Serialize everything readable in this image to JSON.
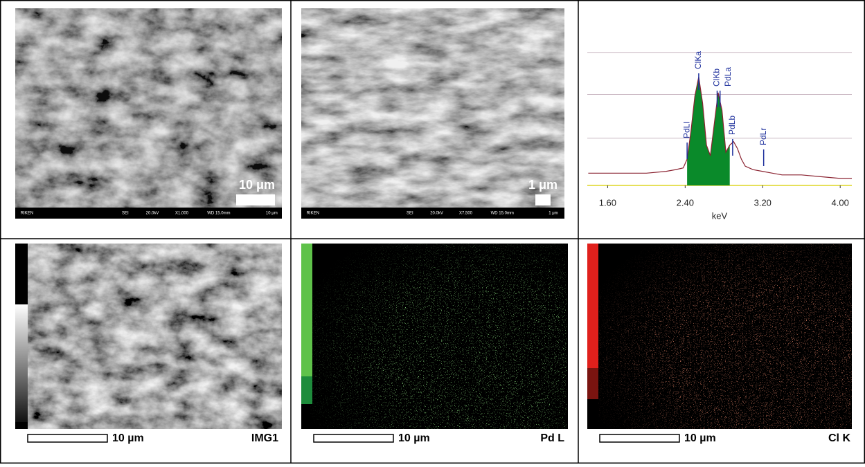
{
  "sem": [
    {
      "scale": "10 μm",
      "info": [
        "RIKEN",
        "SEI",
        "20.0kV",
        "X1,000",
        "WD 15.0mm",
        "10 μm"
      ]
    },
    {
      "scale": "1 μm",
      "info": [
        "RIKEN",
        "SEI",
        "20.0kV",
        "X7,500",
        "WD 15.0mm",
        "1 μm"
      ]
    }
  ],
  "spectrum": {
    "xlabel": "keV",
    "xlim": [
      1.39,
      4.12
    ],
    "ylim": [
      0,
      100
    ],
    "xticks": [
      {
        "value": 1.6,
        "label": "1.60"
      },
      {
        "value": 2.4,
        "label": "2.40"
      },
      {
        "value": 3.2,
        "label": "3.20"
      },
      {
        "value": 4.0,
        "label": "4.00"
      }
    ],
    "ygrid": [
      27,
      52,
      76
    ],
    "x": [
      1.4,
      1.6,
      1.8,
      2.0,
      2.2,
      2.3,
      2.38,
      2.42,
      2.46,
      2.5,
      2.54,
      2.58,
      2.62,
      2.66,
      2.7,
      2.74,
      2.78,
      2.82,
      2.86,
      2.9,
      2.94,
      2.98,
      3.02,
      3.1,
      3.2,
      3.3,
      3.4,
      3.6,
      3.8,
      4.0,
      4.12
    ],
    "values": [
      7,
      7,
      7,
      7,
      8,
      9,
      10,
      15,
      31,
      51,
      62,
      47,
      23,
      17,
      35,
      53,
      43,
      19,
      23,
      25,
      21,
      15,
      11,
      9,
      8,
      7,
      6,
      6,
      5,
      4,
      4
    ],
    "peaks": [
      {
        "label": "PdLl",
        "x": 2.42
      },
      {
        "label": "ClKa",
        "x": 2.54
      },
      {
        "label": "ClKb",
        "x": 2.73
      },
      {
        "label": "PdLa",
        "x": 2.76
      },
      {
        "label": "PdLb",
        "x": 2.89
      },
      {
        "label": "PdLr",
        "x": 3.21
      }
    ]
  },
  "maps": [
    {
      "scale": "10 µm",
      "label": "IMG1"
    },
    {
      "scale": "10 µm",
      "label": "Pd L"
    },
    {
      "scale": "10 µm",
      "label": "Cl K"
    }
  ]
}
